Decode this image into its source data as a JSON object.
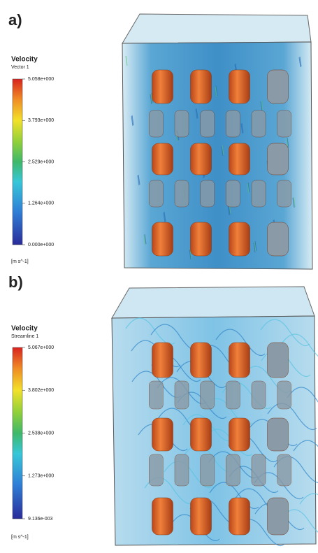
{
  "panels": [
    {
      "label": "a)",
      "legend": {
        "title": "Velocity",
        "subtitle": "Vector 1",
        "ticks": [
          "5.058e+000",
          "3.793e+000",
          "2.529e+000",
          "1.264e+000",
          "0.000e+000"
        ],
        "unit": "[m s^-1]"
      }
    },
    {
      "label": "b)",
      "legend": {
        "title": "Velocity",
        "subtitle": "Streamline 1",
        "ticks": [
          "5.067e+000",
          "3.802e+000",
          "2.538e+000",
          "1.273e+000",
          "9.136e-003"
        ],
        "unit": "[m s^-1]"
      }
    }
  ]
}
